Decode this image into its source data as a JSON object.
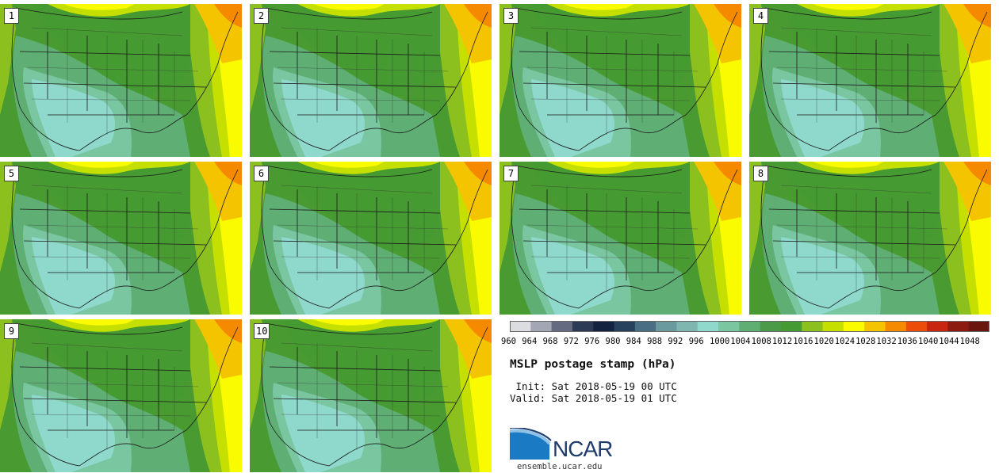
{
  "panels": [
    "1",
    "2",
    "3",
    "4",
    "5",
    "6",
    "7",
    "8",
    "9",
    "10"
  ],
  "colorbar": {
    "ticks": [
      "960",
      "964",
      "968",
      "972",
      "976",
      "980",
      "984",
      "988",
      "992",
      "996",
      "1000",
      "1004",
      "1008",
      "1012",
      "1016",
      "1020",
      "1024",
      "1028",
      "1032",
      "1036",
      "1040",
      "1044",
      "1048"
    ],
    "colors": [
      "#dcdde0",
      "#a3a7b5",
      "#646b80",
      "#2d3a55",
      "#13223e",
      "#27415d",
      "#4a6e82",
      "#6a9a9e",
      "#7fb7b0",
      "#8ed8cc",
      "#79c6a0",
      "#5fae74",
      "#4a9a4a",
      "#469a32",
      "#8cc01e",
      "#c5e000",
      "#fbfb00",
      "#f5c400",
      "#f58a00",
      "#ec4e0a",
      "#c8260e",
      "#8d1a10",
      "#6a1510"
    ]
  },
  "title": "MSLP postage stamp (hPa)",
  "init": " Init: Sat 2018-05-19 00 UTC",
  "valid": "Valid: Sat 2018-05-19 01 UTC",
  "logo": {
    "text": "NCAR",
    "url": "ensemble.ucar.edu"
  }
}
